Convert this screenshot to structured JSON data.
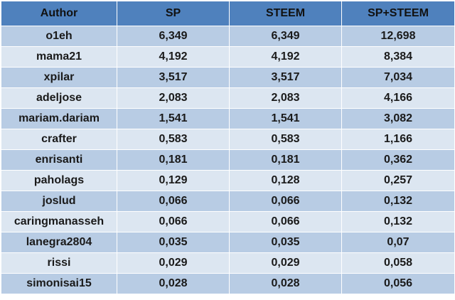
{
  "table": {
    "headers": [
      "Author",
      "SP",
      "STEEM",
      "SP+STEEM"
    ],
    "rows": [
      [
        "o1eh",
        "6,349",
        "6,349",
        "12,698"
      ],
      [
        "mama21",
        "4,192",
        "4,192",
        "8,384"
      ],
      [
        "xpilar",
        "3,517",
        "3,517",
        "7,034"
      ],
      [
        "adeljose",
        "2,083",
        "2,083",
        "4,166"
      ],
      [
        "mariam.dariam",
        "1,541",
        "1,541",
        "3,082"
      ],
      [
        "crafter",
        "0,583",
        "0,583",
        "1,166"
      ],
      [
        "enrisanti",
        "0,181",
        "0,181",
        "0,362"
      ],
      [
        "paholags",
        "0,129",
        "0,128",
        "0,257"
      ],
      [
        "joslud",
        "0,066",
        "0,066",
        "0,132"
      ],
      [
        "caringmanasseh",
        "0,066",
        "0,066",
        "0,132"
      ],
      [
        "lanegra2804",
        "0,035",
        "0,035",
        "0,07"
      ],
      [
        "rissi",
        "0,029",
        "0,029",
        "0,058"
      ],
      [
        "simonisai15",
        "0,028",
        "0,028",
        "0,056"
      ]
    ]
  },
  "colors": {
    "header_bg": "#4f81bd",
    "row_odd_bg": "#b8cce4",
    "row_even_bg": "#dce6f1",
    "grid_line": "#ffffff"
  }
}
